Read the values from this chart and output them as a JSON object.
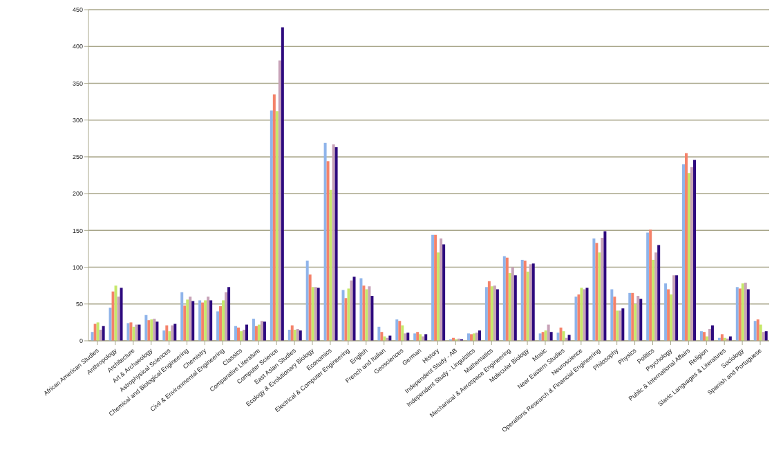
{
  "chart_data": {
    "type": "bar",
    "categories": [
      "African American Studies",
      "Anthropology",
      "Architecture",
      "Art & Archaeology",
      "Astrophysical Sciences",
      "Chemical and Biological Engineering",
      "Chemistry",
      "Civil & Environmental Engineering",
      "Classics",
      "Comparative Literature",
      "Computer Science",
      "East Asian Studies",
      "Ecology & Evolutionary Biology",
      "Economics",
      "Electrical & Computer Engineering",
      "English",
      "French and Italian",
      "Geosciences",
      "German",
      "History",
      "Independent Study - AB",
      "Independent Study - Linguistics",
      "Mathematics",
      "Mechanical & Aerospace Engineering",
      "Molecular Biology",
      "Music",
      "Near Eastern Studies",
      "Neuroscience",
      "Operations Research & Financial Engineering",
      "Philosophy",
      "Physics",
      "Politics",
      "Psychology",
      "Public & International Affairs",
      "Religion",
      "Slavic Languages & Literatures",
      "Sociology",
      "Spanish and Portuguese"
    ],
    "series": [
      {
        "color": "#8fb4ea",
        "values": [
          12,
          45,
          24,
          35,
          14,
          66,
          55,
          40,
          20,
          30,
          313,
          15,
          109,
          269,
          69,
          85,
          19,
          29,
          10,
          144,
          2,
          10,
          73,
          115,
          110,
          10,
          11,
          60,
          139,
          70,
          65,
          147,
          78,
          240,
          13,
          4,
          73,
          27
        ]
      },
      {
        "color": "#f4826a",
        "values": [
          23,
          67,
          25,
          28,
          21,
          48,
          52,
          47,
          18,
          20,
          335,
          21,
          90,
          244,
          58,
          75,
          12,
          27,
          12,
          144,
          4,
          9,
          81,
          113,
          109,
          12,
          18,
          63,
          133,
          60,
          65,
          151,
          70,
          255,
          12,
          9,
          71,
          29
        ]
      },
      {
        "color": "#c6e86a",
        "values": [
          25,
          75,
          19,
          29,
          13,
          56,
          55,
          55,
          13,
          22,
          312,
          15,
          73,
          205,
          71,
          70,
          6,
          21,
          9,
          120,
          2,
          10,
          74,
          92,
          94,
          14,
          13,
          72,
          120,
          41,
          50,
          110,
          63,
          228,
          6,
          4,
          78,
          22
        ]
      },
      {
        "color": "#c7a2b8",
        "values": [
          15,
          60,
          22,
          30,
          21,
          60,
          60,
          66,
          15,
          27,
          381,
          16,
          73,
          267,
          82,
          74,
          4,
          10,
          6,
          139,
          3,
          11,
          75,
          100,
          104,
          22,
          4,
          70,
          140,
          41,
          61,
          120,
          89,
          236,
          16,
          3,
          79,
          12
        ]
      },
      {
        "color": "#2e0a7e",
        "values": [
          20,
          72,
          22,
          26,
          23,
          54,
          55,
          73,
          22,
          26,
          426,
          14,
          72,
          263,
          87,
          61,
          7,
          11,
          9,
          131,
          2,
          14,
          70,
          89,
          105,
          12,
          8,
          72,
          149,
          44,
          57,
          130,
          89,
          246,
          21,
          6,
          70,
          13
        ]
      }
    ],
    "ylim": [
      0,
      450
    ],
    "yticks": [
      0,
      50,
      100,
      150,
      200,
      250,
      300,
      350,
      400,
      450
    ],
    "grid": "y",
    "legend": false
  }
}
